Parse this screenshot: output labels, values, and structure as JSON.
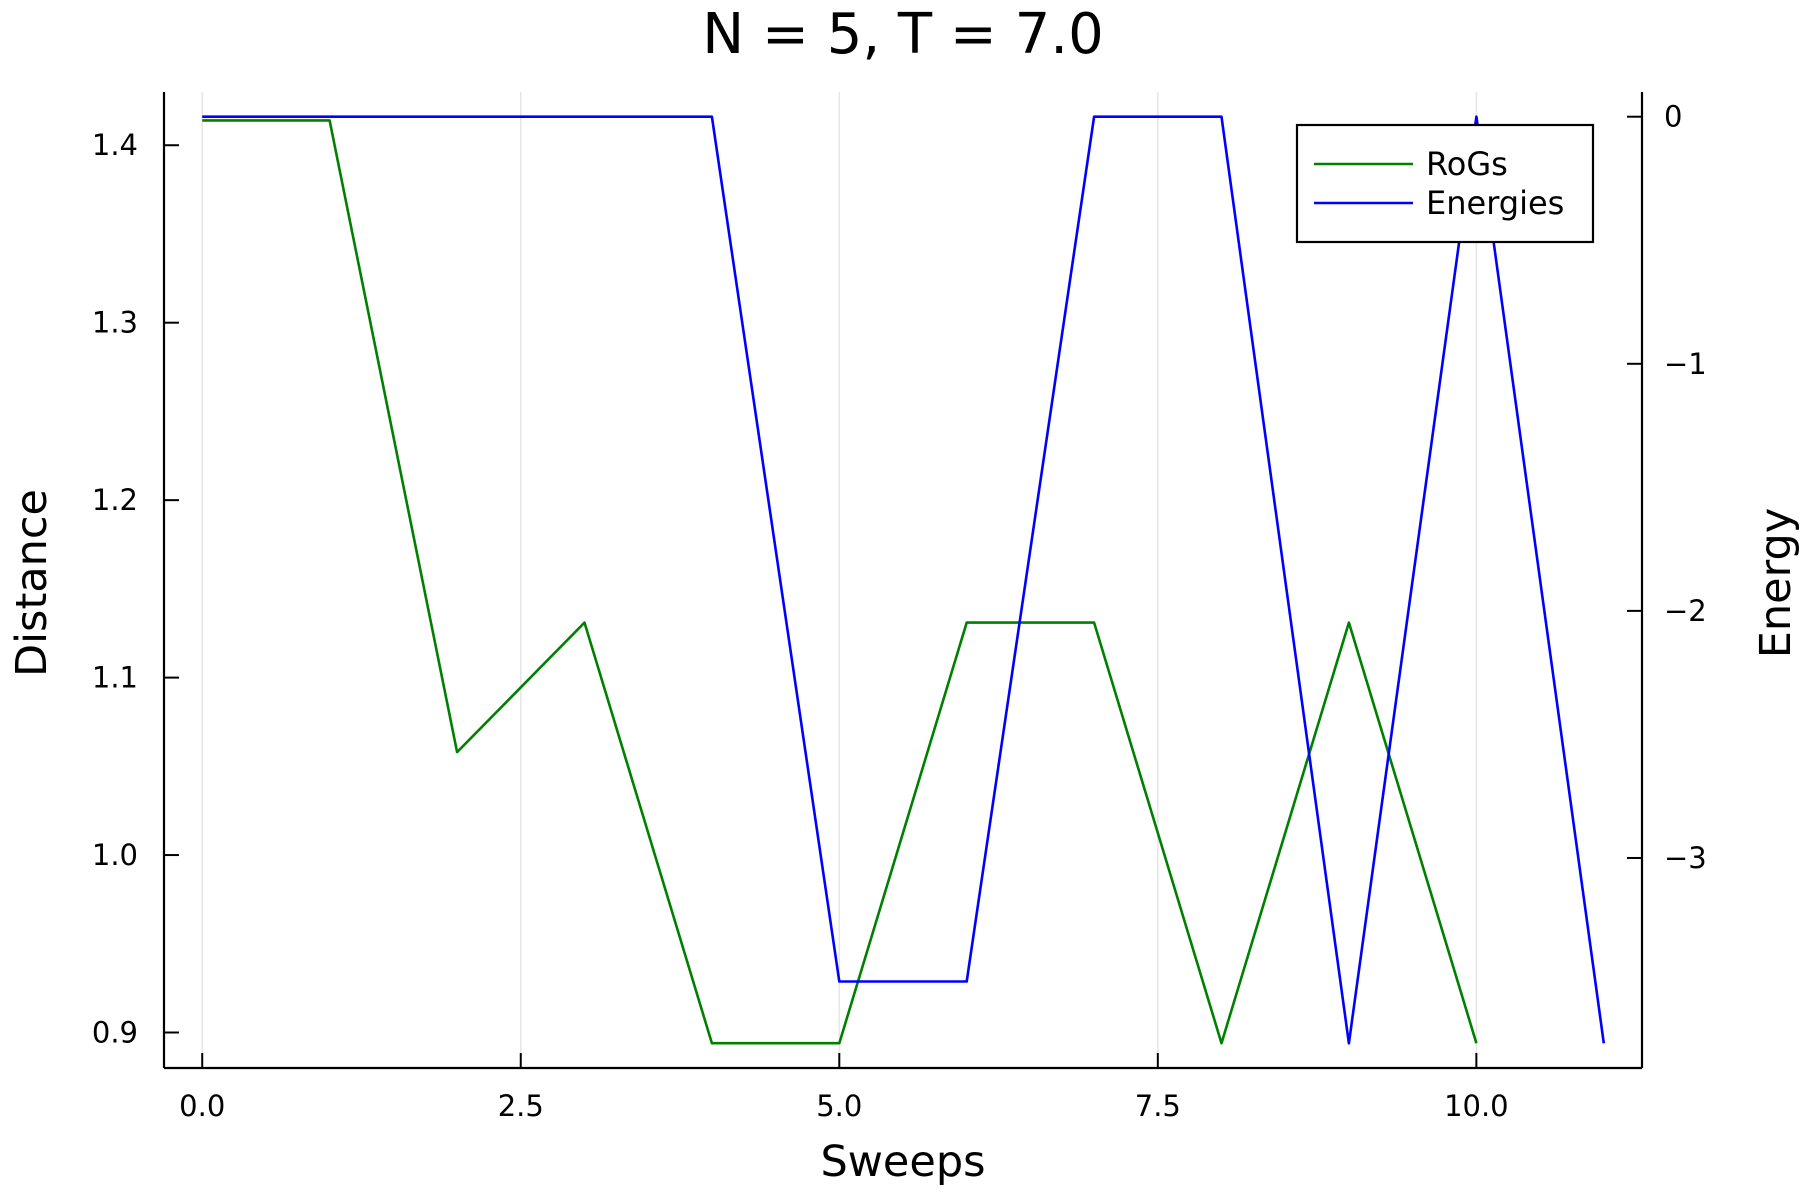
{
  "chart_data": {
    "type": "line",
    "title": "N = 5, T = 7.0",
    "xlabel": "Sweeps",
    "ylabel": "Distance",
    "y2label": "Energy",
    "xlim": [
      -0.3,
      11.3
    ],
    "ylim": [
      0.88,
      1.43
    ],
    "y2lim": [
      -3.85,
      0.1
    ],
    "xticks": [
      0.0,
      2.5,
      5.0,
      7.5,
      10.0
    ],
    "xtick_labels": [
      "0.0",
      "2.5",
      "5.0",
      "7.5",
      "10.0"
    ],
    "yticks": [
      0.9,
      1.0,
      1.1,
      1.2,
      1.3,
      1.4
    ],
    "ytick_labels": [
      "0.9",
      "1.0",
      "1.1",
      "1.2",
      "1.3",
      "1.4"
    ],
    "y2ticks": [
      0,
      -1,
      -2,
      -3
    ],
    "y2tick_labels": [
      "0",
      "−1",
      "−2",
      "−3"
    ],
    "grid": true,
    "legend_position": "top-right",
    "series": [
      {
        "name": "RoGs",
        "axis": "left",
        "color": "#008000",
        "x": [
          0,
          1,
          2,
          3,
          4,
          5,
          6,
          7,
          8,
          9,
          10
        ],
        "values": [
          1.414,
          1.414,
          1.058,
          1.131,
          0.894,
          0.894,
          1.131,
          1.131,
          0.894,
          1.131,
          0.894
        ]
      },
      {
        "name": "Energies",
        "axis": "right",
        "color": "#0000ff",
        "x": [
          0,
          1,
          2,
          3,
          4,
          5,
          6,
          7,
          8,
          9,
          10,
          11
        ],
        "values": [
          0,
          0,
          0,
          0,
          0,
          -3.5,
          -3.5,
          0,
          0,
          -3.75,
          0,
          -3.75
        ]
      }
    ]
  }
}
